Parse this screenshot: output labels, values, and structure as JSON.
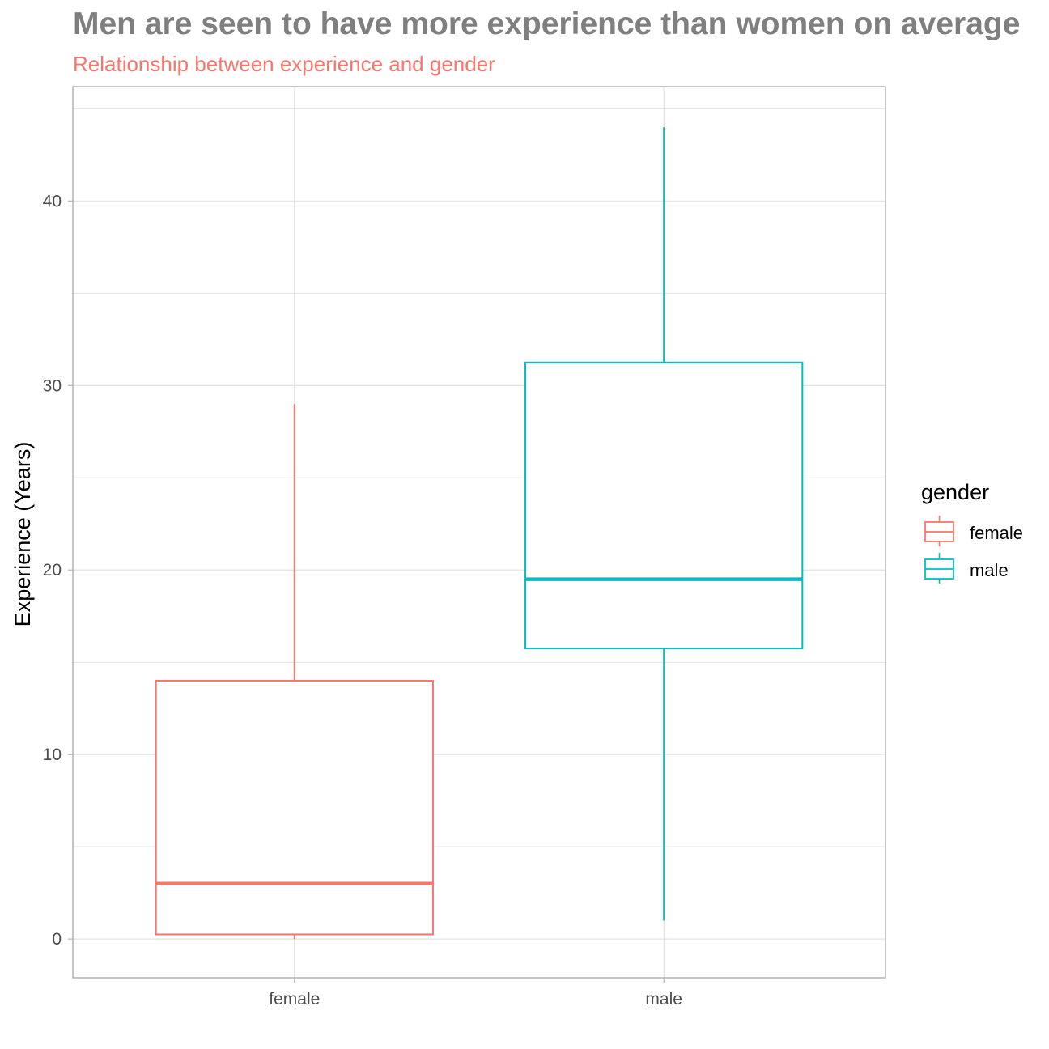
{
  "chart_data": {
    "type": "boxplot",
    "title": "Men are seen to have more experience than women on average",
    "subtitle": "Relationship between experience and gender",
    "xlabel": "",
    "ylabel": "Experience (Years)",
    "ylim": [
      -2.1,
      46.2
    ],
    "y_ticks": [
      0,
      10,
      20,
      30,
      40
    ],
    "y_tick_labels": [
      "0",
      "10",
      "20",
      "30",
      "40"
    ],
    "grid": true,
    "categories": [
      "female",
      "male"
    ],
    "series": [
      {
        "name": "female",
        "color": "#f8766d",
        "whisker_low": 0,
        "q1": 0.25,
        "median": 3,
        "q3": 14,
        "whisker_high": 29
      },
      {
        "name": "male",
        "color": "#00bfc4",
        "whisker_low": 1,
        "q1": 15.75,
        "median": 19.5,
        "q3": 31.25,
        "whisker_high": 44
      }
    ],
    "legend": {
      "title": "gender",
      "position": "right",
      "entries": [
        "female",
        "male"
      ]
    }
  }
}
